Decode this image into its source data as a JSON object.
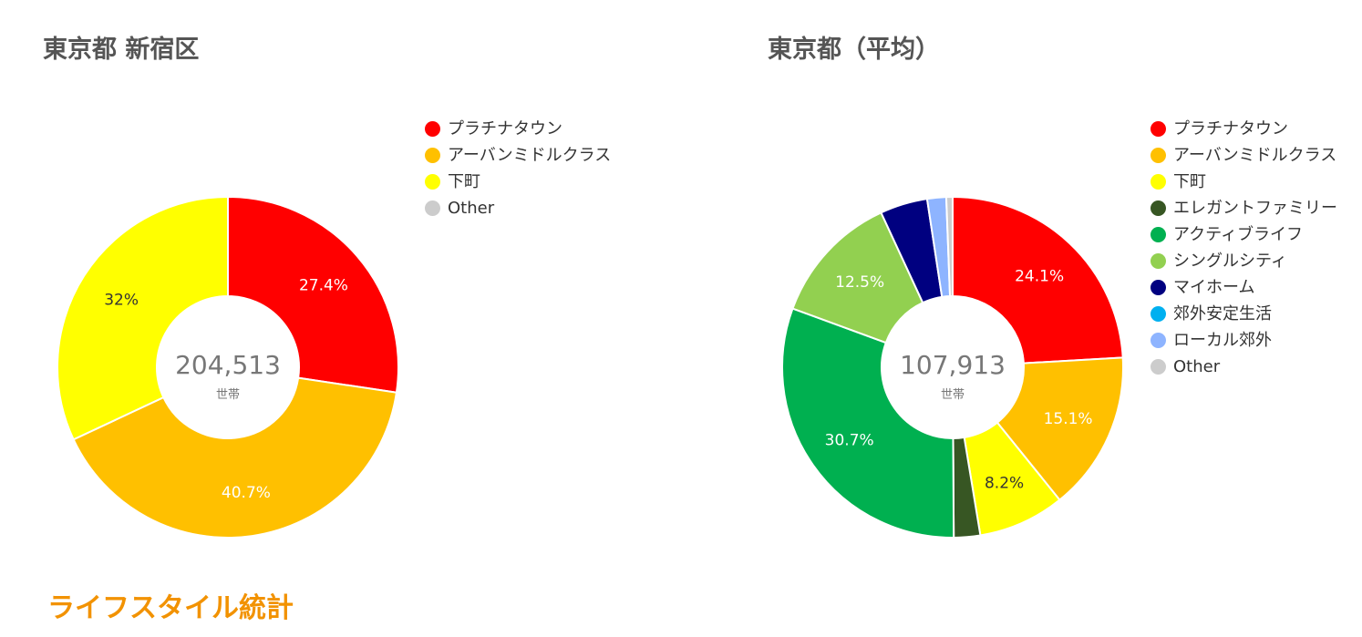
{
  "charts": {
    "left": {
      "title": "東京都 新宿区"
    },
    "right": {
      "title": "東京都（平均）"
    }
  },
  "chart_data": [
    {
      "type": "pie",
      "title": "東京都 新宿区",
      "center_value": "204,513",
      "center_unit": "世帯",
      "slices": [
        {
          "name": "プラチナタウン",
          "value": 27.4,
          "label": "27.4%",
          "color": "#ff0000"
        },
        {
          "name": "アーバンミドルクラス",
          "value": 40.7,
          "label": "40.7%",
          "color": "#ffc000"
        },
        {
          "name": "下町",
          "value": 32,
          "label": "32%",
          "color": "#ffff00"
        }
      ],
      "legend": [
        {
          "name": "プラチナタウン",
          "color": "#ff0000"
        },
        {
          "name": "アーバンミドルクラス",
          "color": "#ffc000"
        },
        {
          "name": "下町",
          "color": "#ffff00"
        },
        {
          "name": "Other",
          "color": "#cccccc"
        }
      ]
    },
    {
      "type": "pie",
      "title": "東京都（平均）",
      "center_value": "107,913",
      "center_unit": "世帯",
      "slices": [
        {
          "name": "プラチナタウン",
          "value": 24.1,
          "label": "24.1%",
          "color": "#ff0000"
        },
        {
          "name": "アーバンミドルクラス",
          "value": 15.1,
          "label": "15.1%",
          "color": "#ffc000"
        },
        {
          "name": "下町",
          "value": 8.2,
          "label": "8.2%",
          "color": "#ffff00"
        },
        {
          "name": "エレガントファミリー",
          "value": 2.5,
          "label": "",
          "color": "#375623"
        },
        {
          "name": "アクティブライフ",
          "value": 30.7,
          "label": "30.7%",
          "color": "#00b050"
        },
        {
          "name": "シングルシティ",
          "value": 12.5,
          "label": "12.5%",
          "color": "#92d050"
        },
        {
          "name": "マイホーム",
          "value": 4.5,
          "label": "",
          "color": "#000080"
        },
        {
          "name": "郊外安定生活",
          "value": 0,
          "label": "",
          "color": "#00b0f0"
        },
        {
          "name": "ローカル郊外",
          "value": 1.8,
          "label": "",
          "color": "#8eb4ff"
        },
        {
          "name": "Other",
          "value": 0.6,
          "label": "",
          "color": "#cccccc"
        }
      ],
      "legend": [
        {
          "name": "プラチナタウン",
          "color": "#ff0000"
        },
        {
          "name": "アーバンミドルクラス",
          "color": "#ffc000"
        },
        {
          "name": "下町",
          "color": "#ffff00"
        },
        {
          "name": "エレガントファミリー",
          "color": "#375623"
        },
        {
          "name": "アクティブライフ",
          "color": "#00b050"
        },
        {
          "name": "シングルシティ",
          "color": "#92d050"
        },
        {
          "name": "マイホーム",
          "color": "#000080"
        },
        {
          "name": "郊外安定生活",
          "color": "#00b0f0"
        },
        {
          "name": "ローカル郊外",
          "color": "#8eb4ff"
        },
        {
          "name": "Other",
          "color": "#cccccc"
        }
      ]
    }
  ],
  "section": {
    "heading": "ライフスタイル統計"
  }
}
